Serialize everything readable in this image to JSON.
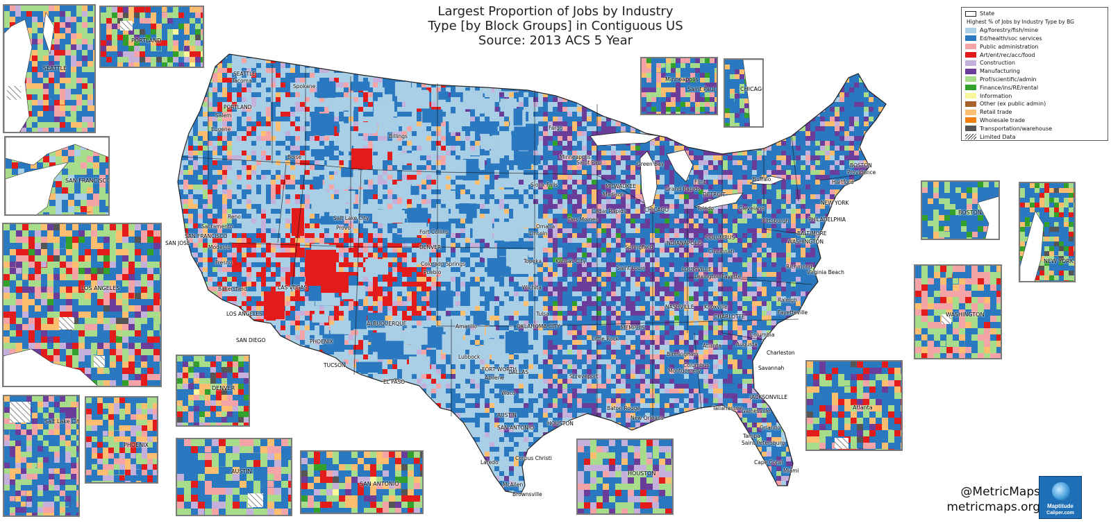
{
  "title": {
    "line1": "Largest Proportion of Jobs by Industry",
    "line2": "Type [by Block Groups] in Contiguous US",
    "line3": "Source:  2013 ACS 5 Year"
  },
  "legend": {
    "state_label": "State",
    "heading": "Highest % of Jobs by Industry Type by BG",
    "items": [
      {
        "label": "Ag/forestry/fish/mine",
        "color": "#a9cfe6"
      },
      {
        "label": "Ed/health/soc services",
        "color": "#2a78bf"
      },
      {
        "label": "Public administration",
        "color": "#f4a3a6"
      },
      {
        "label": "Art/ent/rec/acc/food",
        "color": "#e31b1b"
      },
      {
        "label": "Construction",
        "color": "#c4b0da"
      },
      {
        "label": "Manufacturing",
        "color": "#6a3d9a"
      },
      {
        "label": "Prof/scientific/admin",
        "color": "#a6dc8a"
      },
      {
        "label": "Finance/ins/RE/rental",
        "color": "#33a02c"
      },
      {
        "label": "Information",
        "color": "#f7f79a"
      },
      {
        "label": "Other (ex public admin)",
        "color": "#a9612b"
      },
      {
        "label": "Retail trade",
        "color": "#fdbf6f"
      },
      {
        "label": "Wholesale trade",
        "color": "#f07f12"
      },
      {
        "label": "Transportation/warehouse",
        "color": "#555555"
      }
    ],
    "limited_label": "Limited Data"
  },
  "map_cities": [
    "SEATTLE",
    "Tacoma",
    "Spokane",
    "PORTLAND",
    "Salem",
    "Eugene",
    "Boise",
    "Billings",
    "Fargo",
    "Minneapolis",
    "Saint Paul",
    "Green Bay",
    "Sioux Falls",
    "MILWAUKEE",
    "Madison",
    "Grand Rapids",
    "Flint",
    "DETROIT",
    "Toledo",
    "Cleveland",
    "Buffalo",
    "BOSTON",
    "Providence",
    "Hartford",
    "NEW YORK",
    "PHILADELPHIA",
    "Pittsburgh",
    "BALTIMORE",
    "WASHINGTON",
    "Richmond",
    "Virginia Beach",
    "Raleigh",
    "Fayetteville",
    "CHARLOTTE",
    "Columbia",
    "Charleston",
    "Savannah",
    "Augusta",
    "Atlanta",
    "Columbus",
    "Montgomery",
    "Birmingham",
    "Knoxville",
    "NASHVILLE",
    "MEMPHIS",
    "Little Rock",
    "Shreveport",
    "Baton Rouge",
    "New Orleans",
    "JACKSONVILLE",
    "Tallahassee",
    "Gainesville",
    "Orlando",
    "Tampa",
    "Saint Petersburg",
    "Cape Coral",
    "Miami",
    "CHICAGO",
    "Cedar Rapids",
    "Des Moines",
    "Omaha",
    "Lincoln",
    "Springfield",
    "Saint Louis",
    "INDIANAPOLIS",
    "COLUMBUS",
    "Cincinnati",
    "LOUISVILLE",
    "Lexington-Fayette",
    "Kansas City",
    "Topeka",
    "Wichita",
    "Tulsa",
    "OKLAHOMA CITY",
    "Amarillo",
    "Lubbock",
    "FORT WORTH",
    "DALLAS",
    "Abilene",
    "Waco",
    "AUSTIN",
    "SAN ANTONIO",
    "HOUSTON",
    "Corpus Christi",
    "Laredo",
    "McAllen",
    "Brownsville",
    "EL PASO",
    "ALBUQUERQUE",
    "PHOENIX",
    "TUCSON",
    "Fort Collins",
    "DENVER",
    "Colorado Springs",
    "Pueblo",
    "Salt Lake City",
    "Provo",
    "Reno",
    "Sacramento",
    "SAN FRANCISCO",
    "SAN JOSE",
    "Modesto",
    "Fresno",
    "Bakersfield",
    "LAS VEGAS",
    "LOS ANGELES",
    "SAN DIEGO"
  ],
  "insets": {
    "seattle": "SEATTLE",
    "portland": "PORTLAND",
    "san_francisco": "SAN FRANCISCO",
    "los_angeles": "LOS ANGELES",
    "denver": "DENVER",
    "salt_lake": "Salt Lake City",
    "phoenix": "PHOENIX",
    "austin": "AUSTIN",
    "san_antonio": "SAN ANTONIO",
    "houston": "HOUSTON",
    "minneapolis": "Minneapolis",
    "saint_paul": "Saint Paul",
    "chicago": "CHICAGO",
    "boston": "BOSTON",
    "new_york": "NEW YORK",
    "washington": "WASHINGTON",
    "atlanta": "Atlanta"
  },
  "credits": {
    "handle": "@MetricMaps",
    "site": "metricmaps.org"
  },
  "logo": {
    "name": "Maptitude",
    "sub": "Caliper.com"
  }
}
